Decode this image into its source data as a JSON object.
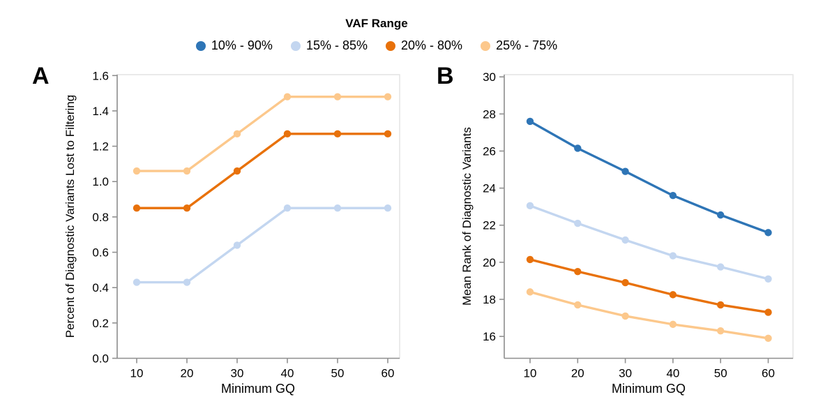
{
  "legend": {
    "title": "VAF Range",
    "items": [
      {
        "label": "10% - 90%",
        "color": "#2E75B6"
      },
      {
        "label": "15% - 85%",
        "color": "#C3D6F0"
      },
      {
        "label": "20% - 80%",
        "color": "#E8710A"
      },
      {
        "label": "25% - 75%",
        "color": "#FCC88C"
      }
    ]
  },
  "chart_data": [
    {
      "type": "line",
      "panel_label": "A",
      "title": "",
      "xlabel": "Minimum GQ",
      "ylabel": "Percent of Diagnostic Variants Lost to Filtering",
      "x": [
        10,
        20,
        30,
        40,
        50,
        60
      ],
      "xlim": [
        6.1,
        62.4
      ],
      "ylim": [
        0,
        1.605
      ],
      "grid": false,
      "legend_position": "top",
      "x_ticks": [
        {
          "value": 10,
          "label": "10"
        },
        {
          "value": 20,
          "label": "20"
        },
        {
          "value": 30,
          "label": "30"
        },
        {
          "value": 40,
          "label": "40"
        },
        {
          "value": 50,
          "label": "50"
        },
        {
          "value": 60,
          "label": "60"
        }
      ],
      "y_ticks": [
        {
          "value": 0.0,
          "label": "0.0"
        },
        {
          "value": 0.2,
          "label": "0.2"
        },
        {
          "value": 0.4,
          "label": "0.4"
        },
        {
          "value": 0.6,
          "label": "0.6"
        },
        {
          "value": 0.8,
          "label": "0.8"
        },
        {
          "value": 1.0,
          "label": "1.0"
        },
        {
          "value": 1.2,
          "label": "1.2"
        },
        {
          "value": 1.4,
          "label": "1.4"
        },
        {
          "value": 1.6,
          "label": "1.6"
        }
      ],
      "series": [
        {
          "name": "15% - 85%",
          "color": "#C3D6F0",
          "values": [
            0.43,
            0.43,
            0.64,
            0.85,
            0.85,
            0.85
          ]
        },
        {
          "name": "20% - 80%",
          "color": "#E8710A",
          "values": [
            0.85,
            0.85,
            1.06,
            1.27,
            1.27,
            1.27
          ]
        },
        {
          "name": "25% - 75%",
          "color": "#FCC88C",
          "values": [
            1.06,
            1.06,
            1.27,
            1.48,
            1.48,
            1.48
          ]
        }
      ]
    },
    {
      "type": "line",
      "panel_label": "B",
      "title": "",
      "xlabel": "Minimum GQ",
      "ylabel": "Mean Rank of Diagnostic Variants",
      "x": [
        10,
        20,
        30,
        40,
        50,
        60
      ],
      "xlim": [
        4.6,
        65.2
      ],
      "ylim": [
        14.82,
        30.12
      ],
      "grid": false,
      "legend_position": "top",
      "x_ticks": [
        {
          "value": 10,
          "label": "10"
        },
        {
          "value": 20,
          "label": "20"
        },
        {
          "value": 30,
          "label": "30"
        },
        {
          "value": 40,
          "label": "40"
        },
        {
          "value": 50,
          "label": "50"
        },
        {
          "value": 60,
          "label": "60"
        }
      ],
      "y_ticks": [
        {
          "value": 16,
          "label": "16"
        },
        {
          "value": 18,
          "label": "18"
        },
        {
          "value": 20,
          "label": "20"
        },
        {
          "value": 22,
          "label": "22"
        },
        {
          "value": 24,
          "label": "24"
        },
        {
          "value": 26,
          "label": "26"
        },
        {
          "value": 28,
          "label": "28"
        },
        {
          "value": 30,
          "label": "30"
        }
      ],
      "series": [
        {
          "name": "10% - 90%",
          "color": "#2E75B6",
          "values": [
            27.6,
            26.15,
            24.9,
            23.6,
            22.55,
            21.6
          ]
        },
        {
          "name": "15% - 85%",
          "color": "#C3D6F0",
          "values": [
            23.05,
            22.1,
            21.2,
            20.35,
            19.75,
            19.1
          ]
        },
        {
          "name": "20% - 80%",
          "color": "#E8710A",
          "values": [
            20.15,
            19.5,
            18.9,
            18.25,
            17.7,
            17.3
          ]
        },
        {
          "name": "25% - 75%",
          "color": "#FCC88C",
          "values": [
            18.4,
            17.7,
            17.1,
            16.65,
            16.3,
            15.9
          ]
        }
      ]
    }
  ]
}
